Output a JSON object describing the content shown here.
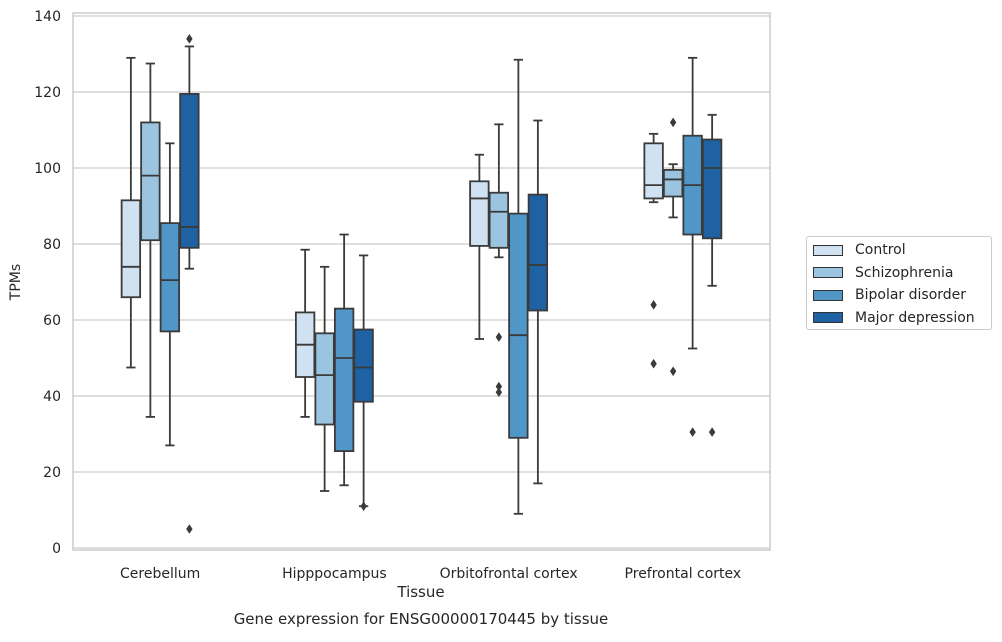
{
  "chart_data": {
    "type": "box",
    "title": "Gene expression for ENSG00000170445 by tissue",
    "xlabel": "Tissue",
    "ylabel": "TPMs",
    "ylim": [
      0,
      140
    ],
    "yticks": [
      0,
      20,
      40,
      60,
      80,
      100,
      120,
      140
    ],
    "grid": "horizontal",
    "legend_position": "right",
    "categories": [
      "Cerebellum",
      "Hipppocampus",
      "Orbitofrontal cortex",
      "Prefrontal cortex"
    ],
    "series": [
      {
        "name": "Control",
        "color": "#d0e2f2",
        "boxes": [
          {
            "whisker_low": 47.5,
            "q1": 66,
            "median": 74,
            "q3": 91.5,
            "whisker_high": 129,
            "outliers": []
          },
          {
            "whisker_low": 34.5,
            "q1": 45,
            "median": 53.5,
            "q3": 62,
            "whisker_high": 78.5,
            "outliers": []
          },
          {
            "whisker_low": 55,
            "q1": 79.5,
            "median": 92,
            "q3": 96.5,
            "whisker_high": 103.5,
            "outliers": []
          },
          {
            "whisker_low": 91,
            "q1": 92,
            "median": 95.5,
            "q3": 106.5,
            "whisker_high": 109,
            "outliers": [
              64,
              48.5
            ]
          }
        ]
      },
      {
        "name": "Schizophrenia",
        "color": "#9ac4df",
        "boxes": [
          {
            "whisker_low": 34.5,
            "q1": 81,
            "median": 98,
            "q3": 112,
            "whisker_high": 127.5,
            "outliers": []
          },
          {
            "whisker_low": 15,
            "q1": 32.5,
            "median": 45.5,
            "q3": 56.5,
            "whisker_high": 74,
            "outliers": []
          },
          {
            "whisker_low": 76.5,
            "q1": 79,
            "median": 88.5,
            "q3": 93.5,
            "whisker_high": 111.5,
            "outliers": [
              55.5,
              42.5,
              41
            ]
          },
          {
            "whisker_low": 87,
            "q1": 92.5,
            "median": 97,
            "q3": 99.5,
            "whisker_high": 101,
            "outliers": [
              112,
              46.5
            ]
          }
        ]
      },
      {
        "name": "Bipolar disorder",
        "color": "#5097c7",
        "boxes": [
          {
            "whisker_low": 27,
            "q1": 57,
            "median": 70.5,
            "q3": 85.5,
            "whisker_high": 106.5,
            "outliers": []
          },
          {
            "whisker_low": 16.5,
            "q1": 25.5,
            "median": 50,
            "q3": 63,
            "whisker_high": 82.5,
            "outliers": []
          },
          {
            "whisker_low": 9,
            "q1": 29,
            "median": 56,
            "q3": 88,
            "whisker_high": 128.5,
            "outliers": []
          },
          {
            "whisker_low": 52.5,
            "q1": 82.5,
            "median": 95.5,
            "q3": 108.5,
            "whisker_high": 129,
            "outliers": [
              30.5
            ]
          }
        ]
      },
      {
        "name": "Major depression",
        "color": "#1f62a3",
        "boxes": [
          {
            "whisker_low": 73.5,
            "q1": 79,
            "median": 84.5,
            "q3": 119.5,
            "whisker_high": 132,
            "outliers": [
              134,
              5
            ]
          },
          {
            "whisker_low": 11,
            "q1": 38.5,
            "median": 47.5,
            "q3": 57.5,
            "whisker_high": 77,
            "outliers": [
              11
            ]
          },
          {
            "whisker_low": 17,
            "q1": 62.5,
            "median": 74.5,
            "q3": 93,
            "whisker_high": 112.5,
            "outliers": []
          },
          {
            "whisker_low": 69,
            "q1": 81.5,
            "median": 100,
            "q3": 107.5,
            "whisker_high": 114,
            "outliers": [
              30.5
            ]
          }
        ]
      }
    ]
  }
}
